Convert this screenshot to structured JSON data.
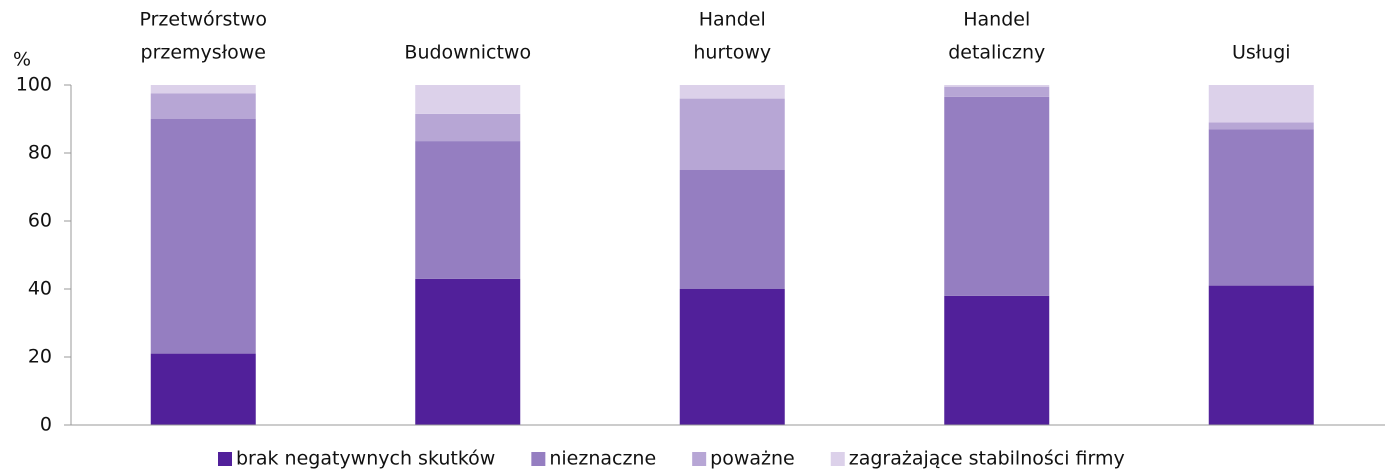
{
  "chart_data": {
    "type": "stacked_bar",
    "y_axis_label": "%",
    "categories": [
      [
        "Przetwórstwo",
        "przemysłowe"
      ],
      [
        "Budownictwo"
      ],
      [
        "Handel",
        "hurtowy"
      ],
      [
        "Handel",
        "detaliczny"
      ],
      [
        "Usługi"
      ]
    ],
    "series": [
      {
        "name": "brak negatywnych skutków",
        "color": "#51209a",
        "values": [
          21,
          43,
          40,
          38,
          41
        ]
      },
      {
        "name": "nieznaczne",
        "color": "#957ec1",
        "values": [
          69,
          40.5,
          35,
          58.5,
          46
        ]
      },
      {
        "name": "poważne",
        "color": "#b7a6d5",
        "values": [
          7.5,
          8,
          21,
          3,
          2
        ]
      },
      {
        "name": "zagrażające stabilności firmy",
        "color": "#dcd1ea",
        "values": [
          2.5,
          8.5,
          4,
          0.5,
          11
        ]
      }
    ],
    "ylim": [
      0,
      100
    ],
    "yticks": [
      0,
      20,
      40,
      60,
      80,
      100
    ],
    "legend": "bottom"
  }
}
